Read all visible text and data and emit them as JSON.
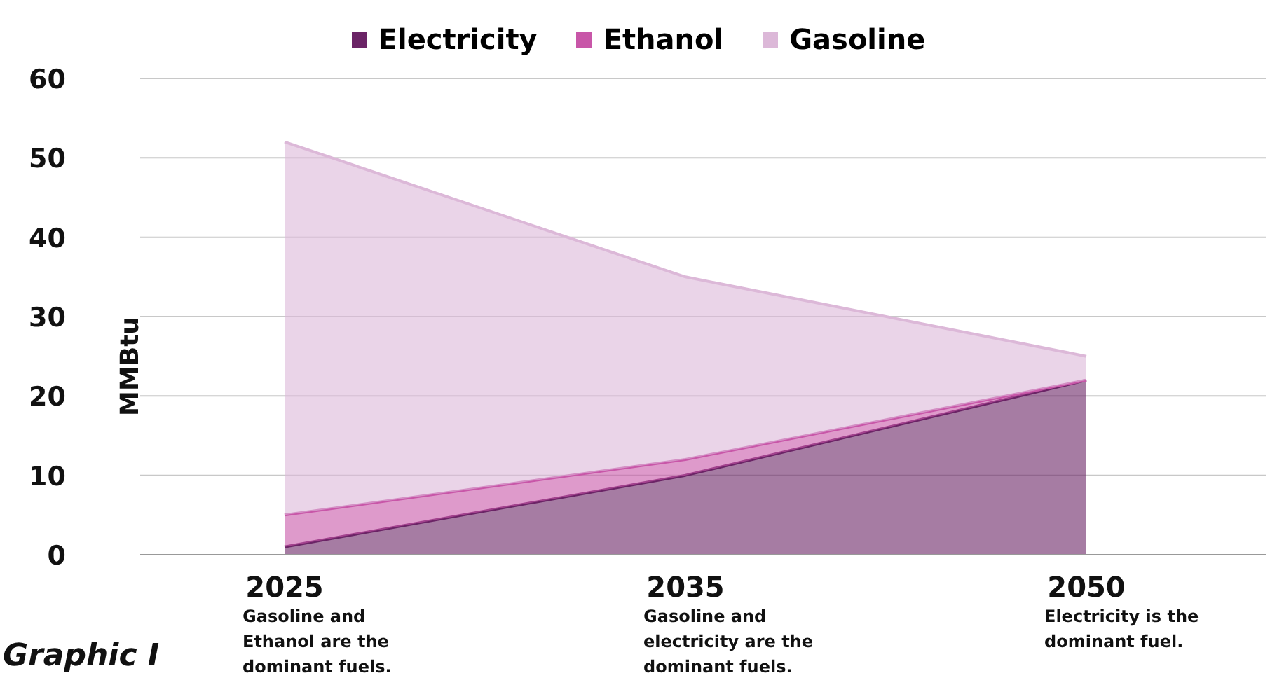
{
  "chart_data": {
    "type": "area",
    "stacked": true,
    "categories": [
      "2025",
      "2035",
      "2050"
    ],
    "series": [
      {
        "name": "Electricity",
        "color": "#6b2466",
        "values": [
          1,
          10,
          22
        ]
      },
      {
        "name": "Ethanol",
        "color": "#c856a8",
        "values": [
          4,
          2,
          0
        ]
      },
      {
        "name": "Gasoline",
        "color": "#dcb8d8",
        "values": [
          47,
          23,
          3
        ]
      }
    ],
    "ylabel": "MMBtu",
    "ylim": [
      0,
      60
    ],
    "yticks": [
      0,
      10,
      20,
      30,
      40,
      50,
      60
    ],
    "grid": "y",
    "legend": "top",
    "annotations": [
      "Gasoline and Ethanol are the dominant fuels.",
      "Gasoline and electricity are the dominant fuels.",
      "Electricity is the dominant fuel.",
      "Graphic I"
    ]
  }
}
